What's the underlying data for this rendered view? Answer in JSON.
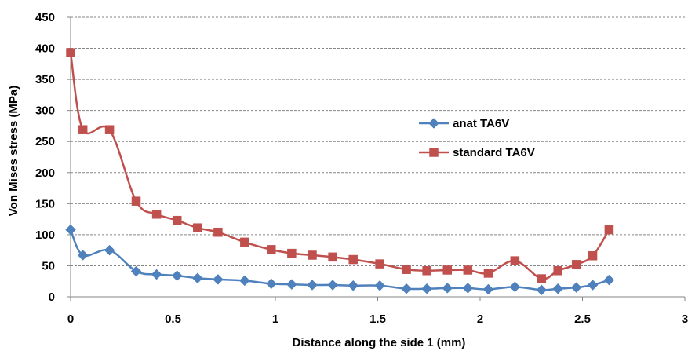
{
  "chart_data": {
    "type": "line",
    "title": "",
    "xlabel": "Distance along the side 1 (mm)",
    "ylabel": "Von Mises stress (MPa)",
    "xlim": [
      0,
      3
    ],
    "ylim": [
      0,
      450
    ],
    "x_ticks": [
      "0",
      "0.5",
      "1",
      "1.5",
      "2",
      "2.5",
      "3"
    ],
    "y_ticks": [
      "0",
      "50",
      "100",
      "150",
      "200",
      "250",
      "300",
      "350",
      "400",
      "450"
    ],
    "grid": "horizontal dashed",
    "legend_position": "right",
    "series": [
      {
        "name": "anat TA6V",
        "color": "#4f81bd",
        "marker": "diamond",
        "points": [
          [
            0,
            108
          ],
          [
            0.06,
            67
          ],
          [
            0.19,
            75
          ],
          [
            0.32,
            41
          ],
          [
            0.42,
            36
          ],
          [
            0.52,
            34
          ],
          [
            0.62,
            30
          ],
          [
            0.72,
            28
          ],
          [
            0.85,
            26
          ],
          [
            0.98,
            21
          ],
          [
            1.08,
            20
          ],
          [
            1.18,
            19
          ],
          [
            1.28,
            19
          ],
          [
            1.38,
            18
          ],
          [
            1.51,
            18
          ],
          [
            1.64,
            13
          ],
          [
            1.74,
            13
          ],
          [
            1.84,
            14
          ],
          [
            1.94,
            14
          ],
          [
            2.04,
            12
          ],
          [
            2.17,
            16
          ],
          [
            2.3,
            11
          ],
          [
            2.38,
            13
          ],
          [
            2.47,
            15
          ],
          [
            2.55,
            19
          ],
          [
            2.63,
            27
          ]
        ]
      },
      {
        "name": "standard TA6V",
        "color": "#c0504d",
        "marker": "square",
        "points": [
          [
            0,
            393
          ],
          [
            0.06,
            269
          ],
          [
            0.19,
            269
          ],
          [
            0.32,
            154
          ],
          [
            0.42,
            133
          ],
          [
            0.52,
            123
          ],
          [
            0.62,
            111
          ],
          [
            0.72,
            104
          ],
          [
            0.85,
            88
          ],
          [
            0.98,
            76
          ],
          [
            1.08,
            70
          ],
          [
            1.18,
            67
          ],
          [
            1.28,
            64
          ],
          [
            1.38,
            60
          ],
          [
            1.51,
            53
          ],
          [
            1.64,
            44
          ],
          [
            1.74,
            42
          ],
          [
            1.84,
            43
          ],
          [
            1.94,
            43
          ],
          [
            2.04,
            38
          ],
          [
            2.17,
            58
          ],
          [
            2.3,
            29
          ],
          [
            2.38,
            42
          ],
          [
            2.47,
            52
          ],
          [
            2.55,
            66
          ],
          [
            2.63,
            108
          ]
        ]
      }
    ]
  }
}
